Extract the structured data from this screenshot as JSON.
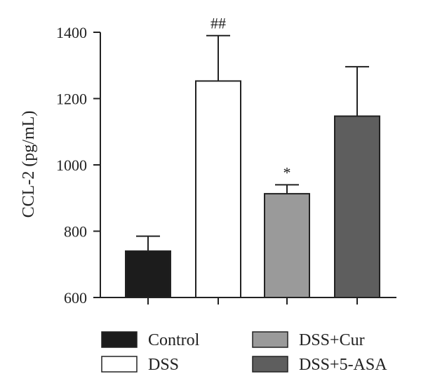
{
  "chart_data": {
    "type": "bar",
    "ylabel": "CCL-2 (pg/mL)",
    "ylim": [
      600,
      1400
    ],
    "yticks": [
      "600",
      "800",
      "1000",
      "1200",
      "1400"
    ],
    "yticks_values": [
      600,
      800,
      1000,
      1200,
      1400
    ],
    "grid": false,
    "legend_position": "bottom",
    "bars": [
      {
        "name": "Control",
        "value": 740,
        "error_upper": 785,
        "annotation": "",
        "color": "#1c1c1c"
      },
      {
        "name": "DSS",
        "value": 1253,
        "error_upper": 1390,
        "annotation": "##",
        "color": "#ffffff"
      },
      {
        "name": "DSS+Cur",
        "value": 913,
        "error_upper": 940,
        "annotation": "*",
        "color": "#9a9a9a"
      },
      {
        "name": "DSS+5-ASA",
        "value": 1147,
        "error_upper": 1296,
        "annotation": "",
        "color": "#5e5e5e"
      }
    ],
    "legend": [
      {
        "label": "Control",
        "color": "#1c1c1c"
      },
      {
        "label": "DSS",
        "color": "#ffffff"
      },
      {
        "label": "DSS+Cur",
        "color": "#9a9a9a"
      },
      {
        "label": "DSS+5-ASA",
        "color": "#5e5e5e"
      }
    ]
  }
}
